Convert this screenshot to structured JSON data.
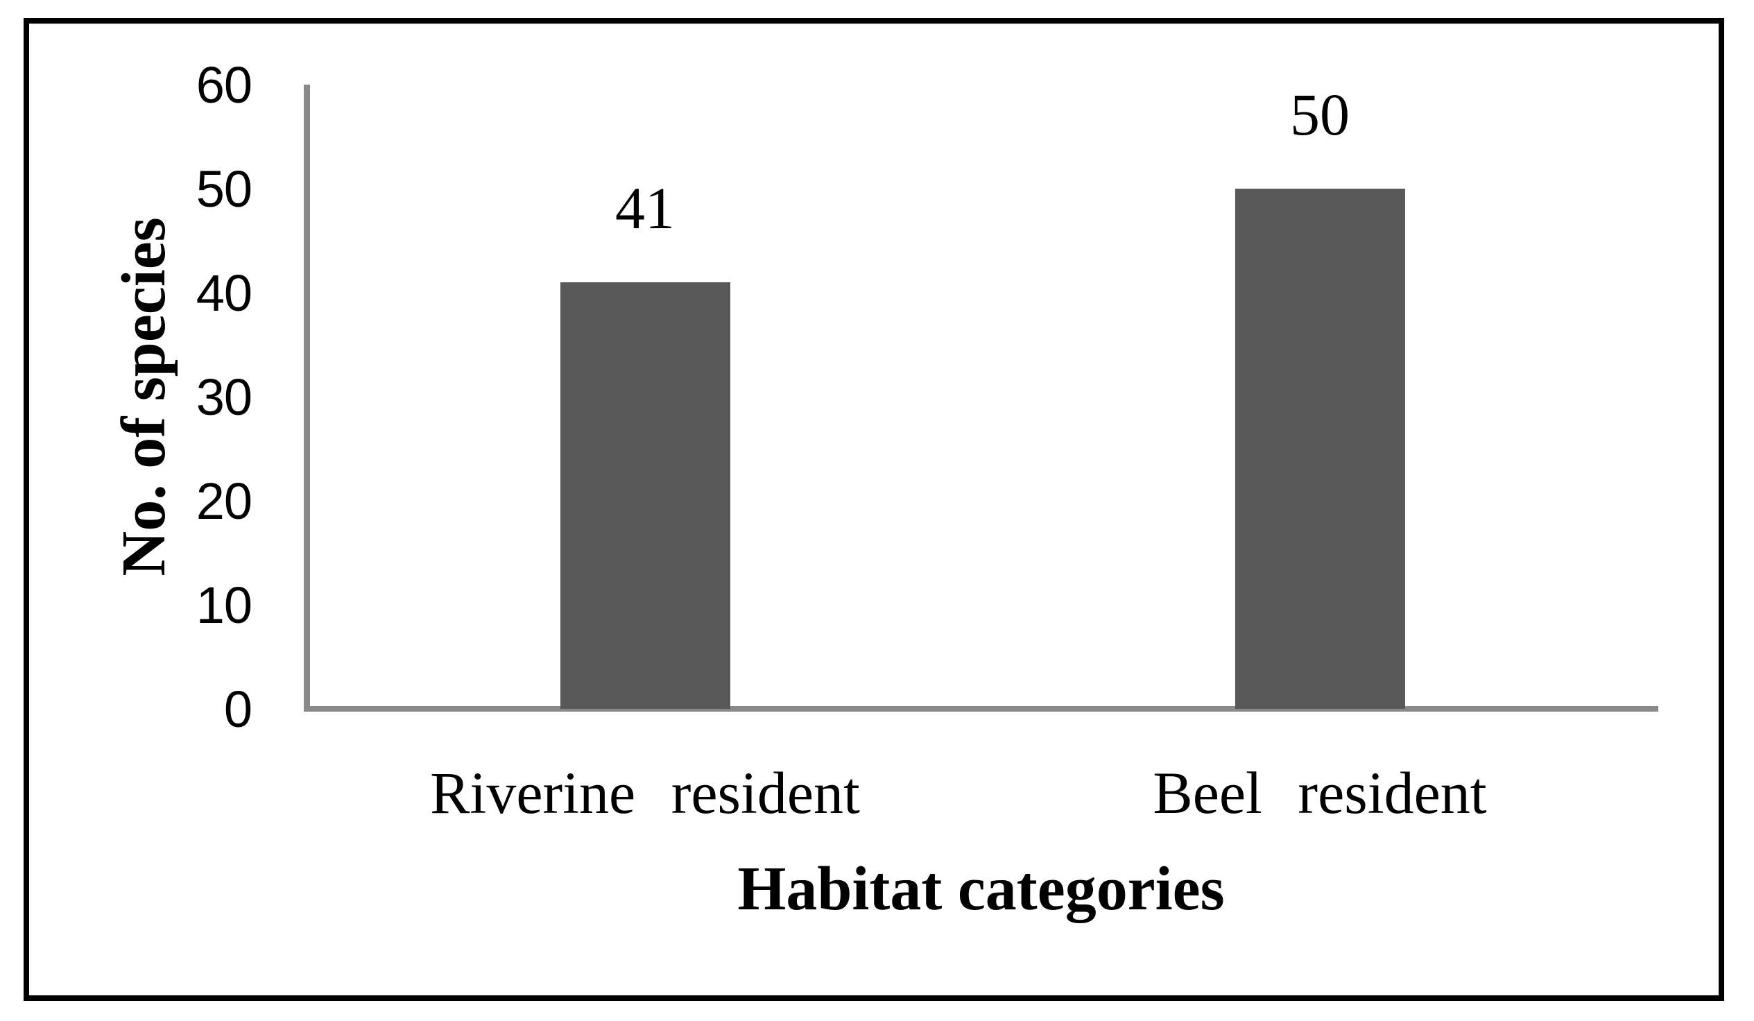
{
  "chart_data": {
    "type": "bar",
    "title": "",
    "categories": [
      "Riverine resident",
      "Beel resident"
    ],
    "values": [
      41,
      50
    ],
    "data_labels": [
      "41",
      "50"
    ],
    "xlabel": "Habitat categories",
    "ylabel": "No. of species",
    "ylim": [
      0,
      60
    ],
    "yticks": [
      0,
      10,
      20,
      30,
      40,
      50,
      60
    ],
    "grid": false,
    "legend": false,
    "bar_color": "#595959",
    "axis_color": "#8a8a8a",
    "text_color": "#000000",
    "frame_color": "#000000"
  }
}
